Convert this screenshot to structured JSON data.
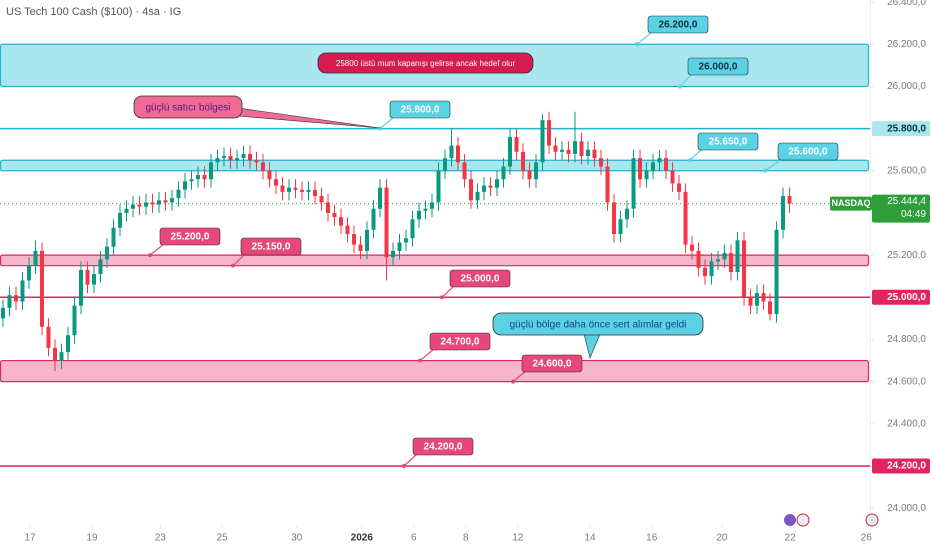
{
  "chart_data": {
    "type": "candlestick",
    "title": "US Tech 100 Cash ($100) · 4sa · IG",
    "up_color": "#089981",
    "down_color": "#f23645",
    "open": [
      24900,
      24950,
      25010,
      24980,
      25080,
      25150,
      25220,
      24860,
      24760,
      24700,
      24740,
      24820,
      24960,
      25130,
      25060,
      25110,
      25180,
      25240,
      25330,
      25400,
      25420,
      25440,
      25430,
      25450,
      25440,
      25460,
      25450,
      25470,
      25510,
      25550,
      25560,
      25580,
      25560,
      25640,
      25660,
      25670,
      25650,
      25660,
      25680,
      25650,
      25640,
      25600,
      25560,
      25530,
      25500,
      25520,
      25510,
      25500,
      25510,
      25480,
      25450,
      25400,
      25380,
      25340,
      25300,
      25250,
      25220,
      25320,
      25420,
      25520,
      25190,
      25220,
      25260,
      25280,
      25370,
      25410,
      25420,
      25450,
      25600,
      25660,
      25720,
      25640,
      25560,
      25460,
      25500,
      25530,
      25520,
      25560,
      25620,
      25760,
      25690,
      25600,
      25560,
      25640,
      25840,
      25720,
      25690,
      25700,
      25680,
      25740,
      25670,
      25700,
      25660,
      25620,
      25450,
      25300,
      25370,
      25420,
      25660,
      25560,
      25600,
      25640,
      25660,
      25600,
      25540,
      25500,
      25250,
      25220,
      25140,
      25100,
      25170,
      25180,
      25210,
      25120,
      25270,
      25000,
      24960,
      25020,
      24980,
      24920,
      25320,
      25480
    ],
    "high": [
      24990,
      25050,
      25050,
      25120,
      25190,
      25270,
      25260,
      24900,
      24800,
      24780,
      24860,
      25000,
      25170,
      25170,
      25150,
      25220,
      25280,
      25370,
      25440,
      25460,
      25480,
      25480,
      25490,
      25490,
      25500,
      25500,
      25510,
      25550,
      25590,
      25600,
      25620,
      25620,
      25680,
      25700,
      25710,
      25710,
      25700,
      25720,
      25720,
      25690,
      25680,
      25640,
      25600,
      25570,
      25560,
      25560,
      25550,
      25550,
      25550,
      25520,
      25490,
      25440,
      25420,
      25380,
      25340,
      25290,
      25360,
      25460,
      25560,
      25560,
      25260,
      25300,
      25320,
      25410,
      25450,
      25460,
      25490,
      25640,
      25700,
      25800,
      25760,
      25680,
      25600,
      25540,
      25570,
      25570,
      25600,
      25660,
      25800,
      25800,
      25730,
      25640,
      25680,
      25870,
      25880,
      25760,
      25740,
      25740,
      25880,
      25780,
      25740,
      25740,
      25700,
      25660,
      25490,
      25410,
      25460,
      25700,
      25700,
      25640,
      25680,
      25700,
      25700,
      25640,
      25580,
      25540,
      25290,
      25260,
      25180,
      25210,
      25220,
      25250,
      25250,
      25310,
      25310,
      25040,
      25060,
      25060,
      25020,
      25360,
      25520,
      25520
    ],
    "low": [
      24860,
      24910,
      24940,
      24940,
      25040,
      25110,
      24820,
      24720,
      24650,
      24660,
      24700,
      24780,
      24920,
      25020,
      25020,
      25070,
      25140,
      25200,
      25290,
      25360,
      25380,
      25390,
      25390,
      25400,
      25400,
      25410,
      25410,
      25430,
      25470,
      25510,
      25520,
      25520,
      25520,
      25600,
      25620,
      25610,
      25610,
      25620,
      25610,
      25600,
      25560,
      25520,
      25490,
      25460,
      25460,
      25470,
      25460,
      25460,
      25440,
      25410,
      25360,
      25340,
      25300,
      25260,
      25210,
      25180,
      25180,
      25280,
      25380,
      25080,
      25150,
      25180,
      25220,
      25240,
      25330,
      25370,
      25380,
      25410,
      25560,
      25620,
      25600,
      25520,
      25420,
      25420,
      25460,
      25480,
      25480,
      25520,
      25580,
      25650,
      25560,
      25520,
      25520,
      25600,
      25680,
      25650,
      25650,
      25640,
      25640,
      25630,
      25630,
      25620,
      25580,
      25410,
      25260,
      25260,
      25330,
      25380,
      25520,
      25520,
      25560,
      25600,
      25560,
      25500,
      25460,
      25210,
      25180,
      25100,
      25060,
      25060,
      25130,
      25140,
      25080,
      25080,
      24960,
      24920,
      24920,
      24940,
      24890,
      24880,
      25280,
      25400
    ],
    "close": [
      24950,
      25010,
      24980,
      25080,
      25150,
      25220,
      24860,
      24760,
      24700,
      24740,
      24820,
      24960,
      25130,
      25060,
      25110,
      25180,
      25240,
      25330,
      25400,
      25420,
      25440,
      25430,
      25450,
      25440,
      25460,
      25450,
      25470,
      25510,
      25550,
      25560,
      25580,
      25560,
      25640,
      25660,
      25670,
      25650,
      25660,
      25680,
      25650,
      25640,
      25600,
      25560,
      25530,
      25500,
      25520,
      25510,
      25500,
      25510,
      25480,
      25450,
      25400,
      25380,
      25340,
      25300,
      25250,
      25220,
      25320,
      25420,
      25520,
      25190,
      25220,
      25260,
      25280,
      25370,
      25410,
      25420,
      25450,
      25600,
      25660,
      25720,
      25640,
      25560,
      25460,
      25500,
      25530,
      25520,
      25560,
      25620,
      25760,
      25690,
      25600,
      25560,
      25640,
      25840,
      25720,
      25690,
      25700,
      25680,
      25740,
      25670,
      25700,
      25660,
      25620,
      25450,
      25300,
      25370,
      25420,
      25660,
      25560,
      25600,
      25640,
      25660,
      25600,
      25540,
      25500,
      25250,
      25220,
      25140,
      25100,
      25170,
      25180,
      25210,
      25120,
      25270,
      25000,
      24960,
      25020,
      24980,
      24920,
      25320,
      25480,
      25444.4
    ],
    "xlim": [
      -0.46,
      133.38
    ],
    "xticks": [
      {
        "value": 4.15,
        "label": "17"
      },
      {
        "value": 13.7,
        "label": "19"
      },
      {
        "value": 24.2,
        "label": "23"
      },
      {
        "value": 33.7,
        "label": "25"
      },
      {
        "value": 45.2,
        "label": "30"
      },
      {
        "value": 55.2,
        "label": "2026"
      },
      {
        "value": 63.2,
        "label": "6"
      },
      {
        "value": 71.2,
        "label": "8"
      },
      {
        "value": 79.2,
        "label": "12"
      },
      {
        "value": 90.3,
        "label": "14"
      },
      {
        "value": 99.8,
        "label": "16"
      },
      {
        "value": 110.6,
        "label": "20"
      },
      {
        "value": 121.1,
        "label": "22"
      },
      {
        "value": 132.8,
        "label": "26"
      }
    ],
    "ylim": [
      23920,
      26410
    ],
    "yticks": [
      {
        "value": 24000,
        "label": "24.000,0"
      },
      {
        "value": 24200,
        "label": "24.200,0"
      },
      {
        "value": 24400,
        "label": "24.400,0"
      },
      {
        "value": 24600,
        "label": "24.600,0"
      },
      {
        "value": 24800,
        "label": "24.800,0"
      },
      {
        "value": 25000,
        "label": "25.000,0"
      },
      {
        "value": 25200,
        "label": "25.200,0"
      },
      {
        "value": 25400,
        "label": "25.400,0"
      },
      {
        "value": 25600,
        "label": "25.600,0"
      },
      {
        "value": 25800,
        "label": "25.800,0"
      },
      {
        "value": 26000,
        "label": "26.000,0"
      },
      {
        "value": 26200,
        "label": "26.200,0"
      },
      {
        "value": 26400,
        "label": "26.400,0"
      }
    ],
    "zones": [
      {
        "from": 26000,
        "to": 26200,
        "color": "#a8e6f0",
        "edge": "#1fb5cc"
      },
      {
        "from": 25600,
        "to": 25650,
        "color": "#a8e6f0",
        "edge": "#1fb5cc"
      },
      {
        "from": 25150,
        "to": 25200,
        "color": "#f8b4ca",
        "edge": "#e0245e"
      },
      {
        "from": 24600,
        "to": 24700,
        "color": "#f8b4ca",
        "edge": "#e0245e"
      }
    ],
    "lines": [
      {
        "value": 25800,
        "color": "#1fb5cc"
      },
      {
        "value": 25000,
        "color": "#e0245e"
      },
      {
        "value": 24200,
        "color": "#e0245e"
      }
    ],
    "price_labels": [
      {
        "value": 25800,
        "label": "25.800,0",
        "color": "#a8e6f0",
        "text_color": "#10303a"
      },
      {
        "value": 25000,
        "label": "25.000,0",
        "color": "#e0245e",
        "text_color": "#ffffff"
      },
      {
        "value": 24200,
        "label": "24.200,0",
        "color": "#e0245e",
        "text_color": "#ffffff"
      }
    ],
    "last": {
      "value": 25444.4,
      "label": "25.444,4",
      "symbol": "NASDAQ",
      "countdown": "04:49",
      "color": "#2e9d3a"
    },
    "callouts": [
      {
        "value": 26200,
        "label": "26.200,0",
        "color": "#5ad2e4",
        "text_color": "#10303a"
      },
      {
        "value": 26000,
        "label": "26.000,0",
        "color": "#5ad2e4",
        "text_color": "#10303a"
      },
      {
        "value": 25800,
        "label": "25.800,0",
        "color": "#5ad2e4",
        "text_color": "#ffffff"
      },
      {
        "value": 25650,
        "label": "25.650,0",
        "color": "#5ad2e4",
        "text_color": "#ffffff"
      },
      {
        "value": 25600,
        "label": "25.600,0",
        "color": "#5ad2e4",
        "text_color": "#ffffff"
      },
      {
        "value": 25200,
        "label": "25.200,0",
        "color": "#e8477a",
        "text_color": "#ffffff"
      },
      {
        "value": 25150,
        "label": "25.150,0",
        "color": "#e8477a",
        "text_color": "#ffffff"
      },
      {
        "value": 25000,
        "label": "25.000,0",
        "color": "#e8477a",
        "text_color": "#ffffff"
      },
      {
        "value": 24700,
        "label": "24.700,0",
        "color": "#e8477a",
        "text_color": "#ffffff"
      },
      {
        "value": 24600,
        "label": "24.600,0",
        "color": "#e8477a",
        "text_color": "#ffffff"
      },
      {
        "value": 24200,
        "label": "24.200,0",
        "color": "#e8477a",
        "text_color": "#ffffff"
      }
    ],
    "notes": [
      {
        "text": "25800 üstü mum kapanışı gelirse ancak hedef olur",
        "color": "#d81b4f",
        "text_color": "#ffffff"
      },
      {
        "text": "güçlü satıcı bölgesi",
        "color": "#f06a93",
        "text_color": "#5a1a8a"
      },
      {
        "text": "güçlü bölge daha önce sert alımlar geldi",
        "color": "#5ad2e4",
        "text_color": "#1a3f8a"
      }
    ]
  }
}
